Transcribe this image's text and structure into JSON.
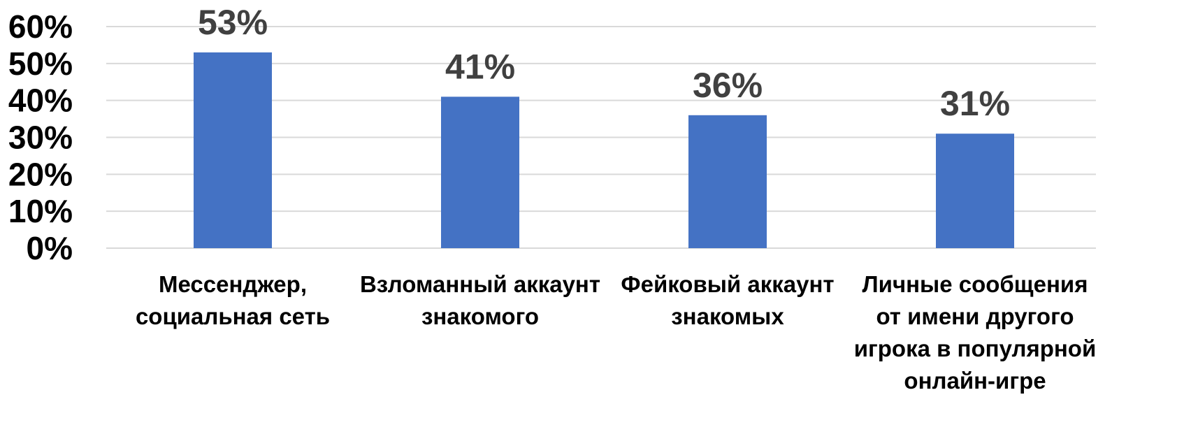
{
  "chart_data": {
    "type": "bar",
    "title": "",
    "xlabel": "",
    "ylabel": "",
    "categories": [
      [
        "Мессенджер,",
        "социальная сеть"
      ],
      [
        "Взломанный аккаунт",
        "знакомого"
      ],
      [
        "Фейковый аккаунт",
        "знакомых"
      ],
      [
        "Личные сообщения",
        "от имени другого",
        "игрока в популярной",
        "онлайн-игре"
      ]
    ],
    "values": [
      53,
      41,
      36,
      31
    ],
    "data_labels": [
      "53%",
      "41%",
      "36%",
      "31%"
    ],
    "ylim": [
      0,
      60
    ],
    "yticks": [
      0,
      10,
      20,
      30,
      40,
      50,
      60
    ],
    "ytick_labels": [
      "0%",
      "10%",
      "20%",
      "30%",
      "40%",
      "50%",
      "60%"
    ],
    "grid": true,
    "legend": "none",
    "colors": {
      "bar": "#4472c4",
      "gridline": "#d9d9d9",
      "data_label": "#404040",
      "axis_text": "#000000"
    }
  }
}
